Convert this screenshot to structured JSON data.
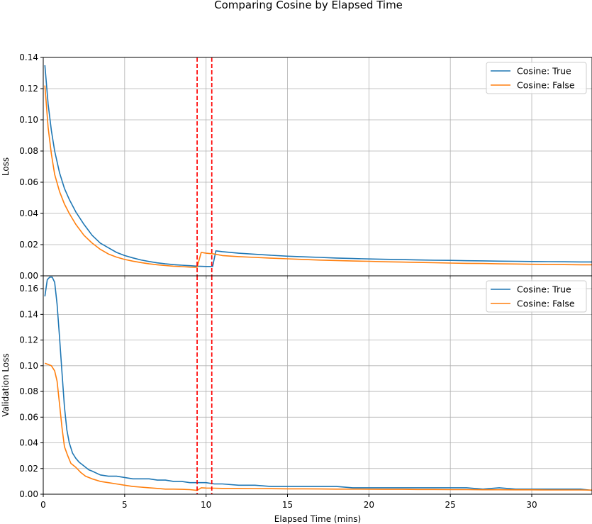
{
  "figure_title": "Comparing Cosine by Elapsed Time",
  "chart_data": [
    {
      "type": "line",
      "panel": "top",
      "title": "",
      "xlabel": "",
      "ylabel": "Loss",
      "xlim": [
        0,
        33.7
      ],
      "ylim": [
        0,
        0.14
      ],
      "yticks": [
        0.0,
        0.02,
        0.04,
        0.06,
        0.08,
        0.1,
        0.12,
        0.14
      ],
      "ytick_labels": [
        "0.00",
        "0.02",
        "0.04",
        "0.06",
        "0.08",
        "0.10",
        "0.12",
        "0.14"
      ],
      "xticks": [
        0,
        5,
        10,
        15,
        20,
        25,
        30
      ],
      "grid": true,
      "legend_position": "top-right",
      "vlines": [
        9.45,
        10.35
      ],
      "vline_color": "#ff0000",
      "series": [
        {
          "name": "Cosine: True",
          "color": "#1f77b4",
          "x": [
            0.1,
            0.3,
            0.5,
            0.7,
            1.0,
            1.3,
            1.6,
            2.0,
            2.5,
            3.0,
            3.5,
            4.0,
            4.5,
            5.0,
            5.5,
            6.0,
            6.5,
            7.0,
            7.5,
            8.0,
            8.5,
            9.0,
            9.5,
            10.0,
            10.2,
            10.4,
            10.6,
            11.0,
            12.0,
            13.0,
            14.0,
            15.0,
            16.0,
            17.0,
            18.0,
            19.0,
            20.0,
            21.0,
            22.0,
            23.0,
            24.0,
            25.0,
            26.0,
            27.0,
            28.0,
            29.0,
            30.0,
            31.0,
            32.0,
            33.0,
            33.7
          ],
          "values": [
            0.135,
            0.11,
            0.093,
            0.08,
            0.066,
            0.056,
            0.049,
            0.041,
            0.033,
            0.026,
            0.021,
            0.018,
            0.015,
            0.013,
            0.0115,
            0.0102,
            0.0092,
            0.0083,
            0.0077,
            0.0072,
            0.0068,
            0.0065,
            0.0062,
            0.006,
            0.006,
            0.006,
            0.016,
            0.0155,
            0.0145,
            0.0138,
            0.0132,
            0.0126,
            0.0122,
            0.0118,
            0.0114,
            0.0111,
            0.0108,
            0.0106,
            0.0104,
            0.0102,
            0.01,
            0.0099,
            0.0097,
            0.0096,
            0.0094,
            0.0093,
            0.0092,
            0.0091,
            0.009,
            0.0089,
            0.0089
          ]
        },
        {
          "name": "Cosine: False",
          "color": "#ff7f0e",
          "x": [
            0.1,
            0.3,
            0.5,
            0.7,
            1.0,
            1.3,
            1.6,
            2.0,
            2.5,
            3.0,
            3.5,
            4.0,
            4.5,
            5.0,
            5.5,
            6.0,
            6.5,
            7.0,
            7.5,
            8.0,
            8.5,
            9.0,
            9.45,
            9.7,
            10.0,
            10.5,
            11.0,
            12.0,
            13.0,
            14.0,
            15.0,
            16.0,
            17.0,
            18.0,
            19.0,
            20.0,
            21.0,
            22.0,
            23.0,
            24.0,
            25.0,
            26.0,
            27.0,
            28.0,
            29.0,
            30.0,
            31.0,
            32.0,
            33.0,
            33.7
          ],
          "values": [
            0.122,
            0.095,
            0.078,
            0.065,
            0.054,
            0.046,
            0.04,
            0.033,
            0.026,
            0.021,
            0.017,
            0.014,
            0.012,
            0.0105,
            0.0094,
            0.0085,
            0.0077,
            0.0071,
            0.0066,
            0.0062,
            0.0059,
            0.0056,
            0.0055,
            0.015,
            0.0145,
            0.014,
            0.013,
            0.0123,
            0.0118,
            0.0113,
            0.0109,
            0.0105,
            0.0101,
            0.0098,
            0.0095,
            0.0093,
            0.009,
            0.0088,
            0.0086,
            0.0084,
            0.0082,
            0.008,
            0.0079,
            0.0077,
            0.0076,
            0.0074,
            0.0073,
            0.0072,
            0.0071,
            0.0071
          ]
        }
      ]
    },
    {
      "type": "line",
      "panel": "bottom",
      "title": "",
      "xlabel": "Elapsed Time (mins)",
      "ylabel": "Validation Loss",
      "xlim": [
        0,
        33.7
      ],
      "ylim": [
        0,
        0.17
      ],
      "yticks": [
        0.0,
        0.02,
        0.04,
        0.06,
        0.08,
        0.1,
        0.12,
        0.14,
        0.16
      ],
      "ytick_labels": [
        "0.00",
        "0.02",
        "0.04",
        "0.06",
        "0.08",
        "0.10",
        "0.12",
        "0.14",
        "0.16"
      ],
      "xticks": [
        0,
        5,
        10,
        15,
        20,
        25,
        30
      ],
      "xtick_labels": [
        "0",
        "5",
        "10",
        "15",
        "20",
        "25",
        "30"
      ],
      "grid": true,
      "legend_position": "top-right",
      "vlines": [
        9.45,
        10.35
      ],
      "vline_color": "#ff0000",
      "series": [
        {
          "name": "Cosine: True",
          "color": "#1f77b4",
          "x": [
            0.1,
            0.25,
            0.4,
            0.55,
            0.7,
            0.85,
            1.0,
            1.15,
            1.3,
            1.45,
            1.6,
            1.8,
            2.0,
            2.2,
            2.5,
            2.8,
            3.0,
            3.5,
            4.0,
            4.5,
            5.0,
            5.5,
            6.0,
            6.5,
            7.0,
            7.5,
            8.0,
            8.5,
            9.0,
            9.5,
            10.0,
            10.5,
            11.0,
            12.0,
            13.0,
            14.0,
            15.0,
            16.0,
            17.0,
            18.0,
            19.0,
            20.0,
            21.0,
            22.0,
            23.0,
            24.0,
            25.0,
            26.0,
            27.0,
            28.0,
            29.0,
            30.0,
            31.0,
            32.0,
            33.0,
            33.7
          ],
          "values": [
            0.154,
            0.167,
            0.169,
            0.169,
            0.165,
            0.148,
            0.122,
            0.095,
            0.068,
            0.05,
            0.04,
            0.032,
            0.028,
            0.025,
            0.022,
            0.019,
            0.018,
            0.015,
            0.014,
            0.014,
            0.013,
            0.012,
            0.012,
            0.012,
            0.011,
            0.011,
            0.01,
            0.01,
            0.009,
            0.009,
            0.009,
            0.008,
            0.008,
            0.007,
            0.007,
            0.006,
            0.006,
            0.006,
            0.006,
            0.006,
            0.005,
            0.005,
            0.005,
            0.005,
            0.005,
            0.005,
            0.005,
            0.005,
            0.004,
            0.005,
            0.004,
            0.004,
            0.004,
            0.004,
            0.004,
            0.003
          ]
        },
        {
          "name": "Cosine: False",
          "color": "#ff7f0e",
          "x": [
            0.1,
            0.3,
            0.5,
            0.7,
            0.85,
            1.0,
            1.15,
            1.3,
            1.5,
            1.7,
            2.0,
            2.3,
            2.6,
            3.0,
            3.5,
            4.0,
            4.5,
            5.0,
            5.5,
            6.0,
            6.5,
            7.0,
            7.5,
            8.0,
            8.5,
            9.0,
            9.45,
            9.7,
            10.0,
            10.5,
            11.0,
            12.0,
            13.0,
            14.0,
            15.0,
            16.0,
            17.0,
            18.0,
            19.0,
            20.0,
            21.0,
            22.0,
            23.0,
            24.0,
            25.0,
            26.0,
            27.0,
            28.0,
            29.0,
            30.0,
            31.0,
            32.0,
            33.0,
            33.7
          ],
          "values": [
            0.102,
            0.101,
            0.1,
            0.096,
            0.088,
            0.07,
            0.052,
            0.037,
            0.03,
            0.024,
            0.021,
            0.017,
            0.014,
            0.012,
            0.01,
            0.009,
            0.008,
            0.007,
            0.006,
            0.0055,
            0.005,
            0.0045,
            0.004,
            0.004,
            0.0038,
            0.0036,
            0.003,
            0.005,
            0.0048,
            0.0047,
            0.0045,
            0.0045,
            0.0044,
            0.0043,
            0.0042,
            0.0042,
            0.0041,
            0.004,
            0.004,
            0.0039,
            0.0038,
            0.0038,
            0.0037,
            0.0037,
            0.0036,
            0.0036,
            0.0035,
            0.0035,
            0.0034,
            0.0034,
            0.0033,
            0.0033,
            0.0033,
            0.0032
          ]
        }
      ]
    }
  ]
}
